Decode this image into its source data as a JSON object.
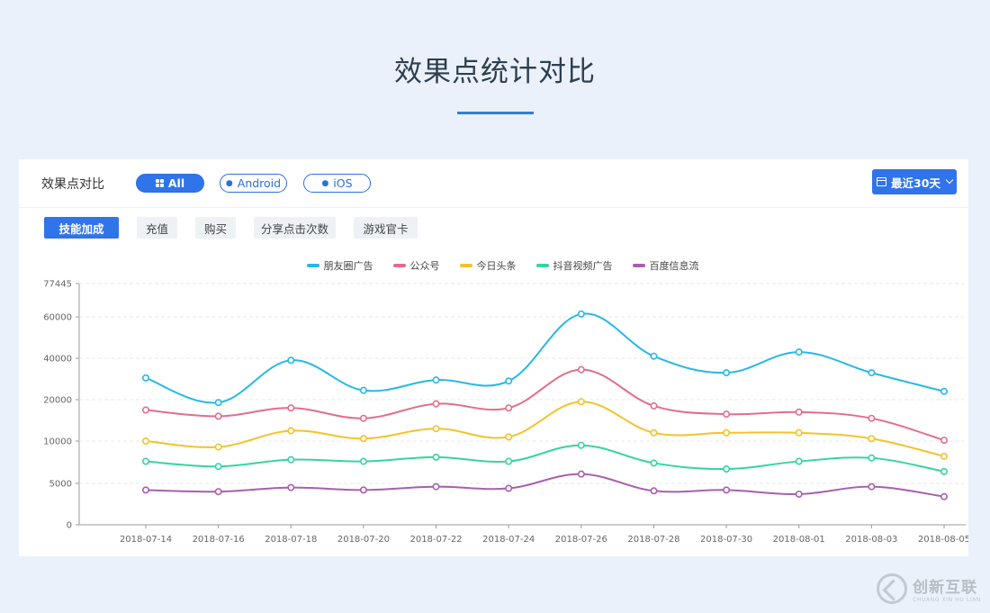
{
  "page": {
    "title": "效果点统计对比"
  },
  "card": {
    "label": "效果点对比",
    "platforms": [
      {
        "label": "All",
        "active": true,
        "icon": "grid-icon"
      },
      {
        "label": "Android",
        "active": false,
        "icon": "android-icon"
      },
      {
        "label": "iOS",
        "active": false,
        "icon": "apple-icon"
      }
    ],
    "date_range": {
      "label": "最近30天",
      "icon": "calendar-icon"
    },
    "tabs": [
      {
        "label": "技能加成",
        "active": true
      },
      {
        "label": "充值",
        "active": false
      },
      {
        "label": "购买",
        "active": false
      },
      {
        "label": "分享点击次数",
        "active": false
      },
      {
        "label": "游戏官卡",
        "active": false
      }
    ]
  },
  "watermark": {
    "cn": "创新互联",
    "en": "CHUANG XIN HU LIAN"
  },
  "chart_data": {
    "type": "line",
    "colors": [
      "#27b8e6",
      "#e36d8b",
      "#f4c22b",
      "#36d4a3",
      "#a95fae"
    ],
    "x": [
      "2018-07-14",
      "2018-07-16",
      "2018-07-18",
      "2018-07-20",
      "2018-07-22",
      "2018-07-24",
      "2018-07-26",
      "2018-07-28",
      "2018-07-30",
      "2018-08-01",
      "2018-08-03",
      "2018-08-05"
    ],
    "y_ticks": [
      "0",
      "5000",
      "10000",
      "20000",
      "40000",
      "60000",
      "77445"
    ],
    "legend_position": "top-center",
    "series": [
      {
        "name": "朋友圈广告",
        "values": [
          30500,
          19300,
          39000,
          24500,
          29500,
          29000,
          61500,
          41000,
          33000,
          43000,
          33000,
          24000
        ]
      },
      {
        "name": "公众号",
        "values": [
          17500,
          16000,
          18000,
          15500,
          19000,
          18000,
          34500,
          18500,
          16500,
          17000,
          15500,
          10200
        ]
      },
      {
        "name": "今日头条",
        "values": [
          10000,
          9300,
          12500,
          10600,
          13000,
          11000,
          19500,
          12000,
          12000,
          12000,
          10600,
          8200
        ]
      },
      {
        "name": "抖音视频广告",
        "values": [
          7600,
          7000,
          7800,
          7600,
          8100,
          7600,
          9500,
          7400,
          6700,
          7600,
          8000,
          6400
        ]
      },
      {
        "name": "百度信息流",
        "values": [
          4200,
          4000,
          4500,
          4200,
          4600,
          4400,
          6100,
          4100,
          4200,
          3700,
          4600,
          3400
        ]
      }
    ]
  }
}
